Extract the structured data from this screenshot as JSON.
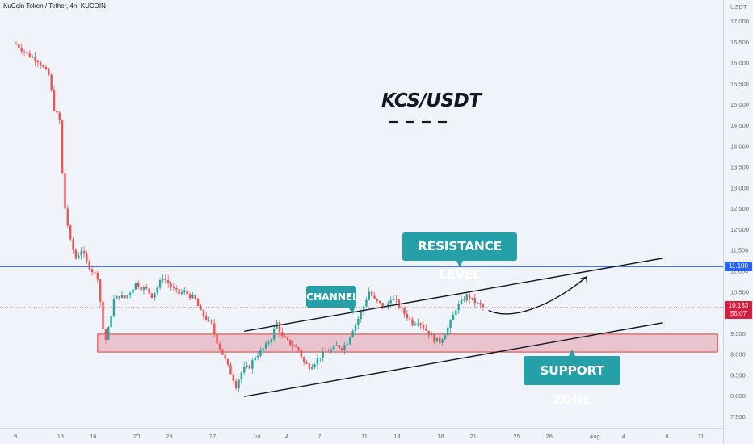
{
  "symbol": "KuCoin Token / Tether, 4h, KUCOIN",
  "annotations": {
    "title": "KCS/USDT",
    "resistance": "RESISTANCE LEVEL",
    "channel": "CHANNEL",
    "support": "SUPPORT ZONE"
  },
  "price_axis": {
    "currency": "USDT",
    "resistance_tag": "11.100",
    "current_price": "10.133",
    "countdown": "55:07"
  },
  "colors": {
    "background": "#f0f3fa",
    "up": "#26a69a",
    "down": "#ef5350",
    "resistance_line": "#2962ff",
    "support_zone": "#e39aa7",
    "label": "#26a0a8"
  },
  "chart_data": {
    "type": "candlestick",
    "timeframe": "4h",
    "y_ticks": [
      "17.000",
      "16.500",
      "16.000",
      "15.500",
      "15.000",
      "14.500",
      "14.000",
      "13.500",
      "13.000",
      "12.500",
      "12.000",
      "11.500",
      "11.000",
      "10.500",
      "10.000",
      "9.500",
      "9.000",
      "8.500",
      "8.000",
      "7.500"
    ],
    "y_values": [
      17,
      16.5,
      16,
      15.5,
      15,
      14.5,
      14,
      13.5,
      13,
      12.5,
      12,
      11.5,
      11,
      10.5,
      10,
      9.5,
      9,
      8.5,
      8,
      7.5
    ],
    "x_ticks": [
      "9",
      "13",
      "16",
      "20",
      "23",
      "27",
      "Jul",
      "4",
      "7",
      "11",
      "14",
      "18",
      "21",
      "25",
      "28",
      "Aug",
      "4",
      "8",
      "11"
    ],
    "x_day_index": [
      0,
      4,
      7,
      11,
      14,
      18,
      22,
      25,
      28,
      32,
      35,
      39,
      42,
      46,
      49,
      53,
      56,
      60,
      63
    ],
    "resistance_level": 11.1,
    "support_zone": [
      9.05,
      9.48
    ],
    "close_path": [
      [
        0,
        16.45
      ],
      [
        1,
        16.2
      ],
      [
        2,
        16.05
      ],
      [
        3,
        15.7
      ],
      [
        3.5,
        14.9
      ],
      [
        4,
        14.6
      ],
      [
        4.2,
        13.5
      ],
      [
        4.5,
        12.5
      ],
      [
        5,
        11.7
      ],
      [
        5.5,
        11.3
      ],
      [
        6,
        11.5
      ],
      [
        6.5,
        11.2
      ],
      [
        7,
        11.0
      ],
      [
        7.5,
        10.85
      ],
      [
        7.7,
        10.4
      ],
      [
        8,
        9.6
      ],
      [
        8.2,
        9.3
      ],
      [
        8.5,
        9.6
      ],
      [
        9,
        10.3
      ],
      [
        9.5,
        10.4
      ],
      [
        10,
        10.35
      ],
      [
        10.5,
        10.5
      ],
      [
        11,
        10.7
      ],
      [
        11.5,
        10.6
      ],
      [
        12,
        10.55
      ],
      [
        12.5,
        10.4
      ],
      [
        13,
        10.6
      ],
      [
        13.5,
        10.85
      ],
      [
        14,
        10.7
      ],
      [
        14.5,
        10.55
      ],
      [
        15,
        10.45
      ],
      [
        15.5,
        10.5
      ],
      [
        16,
        10.4
      ],
      [
        16.5,
        10.3
      ],
      [
        17,
        10.0
      ],
      [
        17.5,
        9.85
      ],
      [
        18,
        9.7
      ],
      [
        18.5,
        9.3
      ],
      [
        19,
        9.0
      ],
      [
        19.5,
        8.7
      ],
      [
        20,
        8.4
      ],
      [
        20.3,
        8.2
      ],
      [
        20.6,
        8.5
      ],
      [
        21,
        8.65
      ],
      [
        21.5,
        8.7
      ],
      [
        22,
        8.95
      ],
      [
        22.5,
        9.05
      ],
      [
        23,
        9.2
      ],
      [
        23.5,
        9.4
      ],
      [
        24,
        9.75
      ],
      [
        24.5,
        9.4
      ],
      [
        25,
        9.3
      ],
      [
        25.5,
        9.2
      ],
      [
        26,
        9.1
      ],
      [
        26.5,
        8.8
      ],
      [
        27,
        8.7
      ],
      [
        27.5,
        8.8
      ],
      [
        28,
        8.95
      ],
      [
        28.5,
        9.05
      ],
      [
        29,
        9.1
      ],
      [
        29.5,
        9.2
      ],
      [
        30,
        9.15
      ],
      [
        30.5,
        9.3
      ],
      [
        31,
        9.6
      ],
      [
        31.5,
        9.85
      ],
      [
        32,
        10.15
      ],
      [
        32.5,
        10.5
      ],
      [
        33,
        10.3
      ],
      [
        33.5,
        10.2
      ],
      [
        34,
        10.1
      ],
      [
        34.5,
        10.35
      ],
      [
        35,
        10.25
      ],
      [
        35.5,
        10.05
      ],
      [
        36,
        9.9
      ],
      [
        36.5,
        9.75
      ],
      [
        37,
        9.8
      ],
      [
        37.5,
        9.65
      ],
      [
        38,
        9.5
      ],
      [
        38.5,
        9.35
      ],
      [
        39,
        9.3
      ],
      [
        39.5,
        9.5
      ],
      [
        40,
        9.75
      ],
      [
        40.5,
        10.1
      ],
      [
        41,
        10.25
      ],
      [
        41.5,
        10.4
      ],
      [
        42,
        10.3
      ],
      [
        42.5,
        10.2
      ],
      [
        43,
        10.13
      ]
    ],
    "projection_path": [
      [
        43.5,
        10.05
      ],
      [
        46,
        9.75
      ],
      [
        50,
        10.3
      ],
      [
        52.5,
        10.85
      ]
    ],
    "channel_upper": [
      [
        21,
        9.55
      ],
      [
        59.5,
        11.3
      ]
    ],
    "channel_lower": [
      [
        21,
        7.98
      ],
      [
        59.5,
        9.75
      ]
    ]
  }
}
